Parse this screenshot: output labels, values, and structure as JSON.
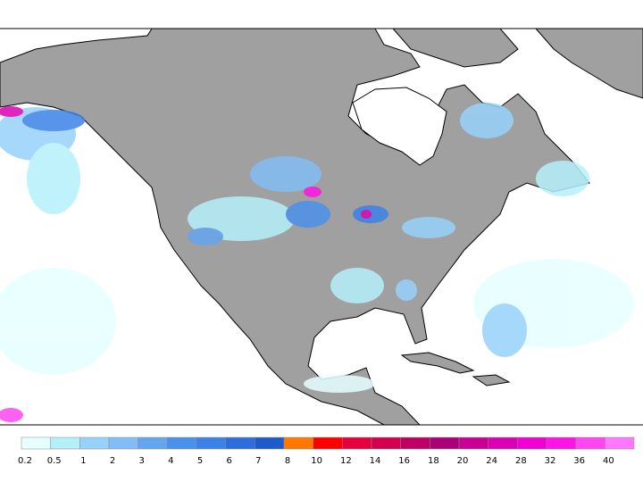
{
  "legend": {
    "items": [
      {
        "label": "0.2",
        "color": "#e6ffff"
      },
      {
        "label": "0.5",
        "color": "#b4f0fa"
      },
      {
        "label": "1",
        "color": "#96d2fa"
      },
      {
        "label": "2",
        "color": "#82bef5"
      },
      {
        "label": "3",
        "color": "#64a5f0"
      },
      {
        "label": "4",
        "color": "#4b91eb"
      },
      {
        "label": "5",
        "color": "#3c82e6"
      },
      {
        "label": "6",
        "color": "#2d6edc"
      },
      {
        "label": "7",
        "color": "#1e5ac8"
      },
      {
        "label": "8",
        "color": "#ff7800"
      },
      {
        "label": "10",
        "color": "#ff0000"
      },
      {
        "label": "12",
        "color": "#e6003c"
      },
      {
        "label": "14",
        "color": "#d20050"
      },
      {
        "label": "16",
        "color": "#be0064"
      },
      {
        "label": "18",
        "color": "#aa0078"
      },
      {
        "label": "20",
        "color": "#c80096"
      },
      {
        "label": "24",
        "color": "#dc00b4"
      },
      {
        "label": "28",
        "color": "#f000d2"
      },
      {
        "label": "32",
        "color": "#ff14e6"
      },
      {
        "label": "36",
        "color": "#ff46f0"
      },
      {
        "label": "40",
        "color": "#ff78ff"
      }
    ]
  }
}
